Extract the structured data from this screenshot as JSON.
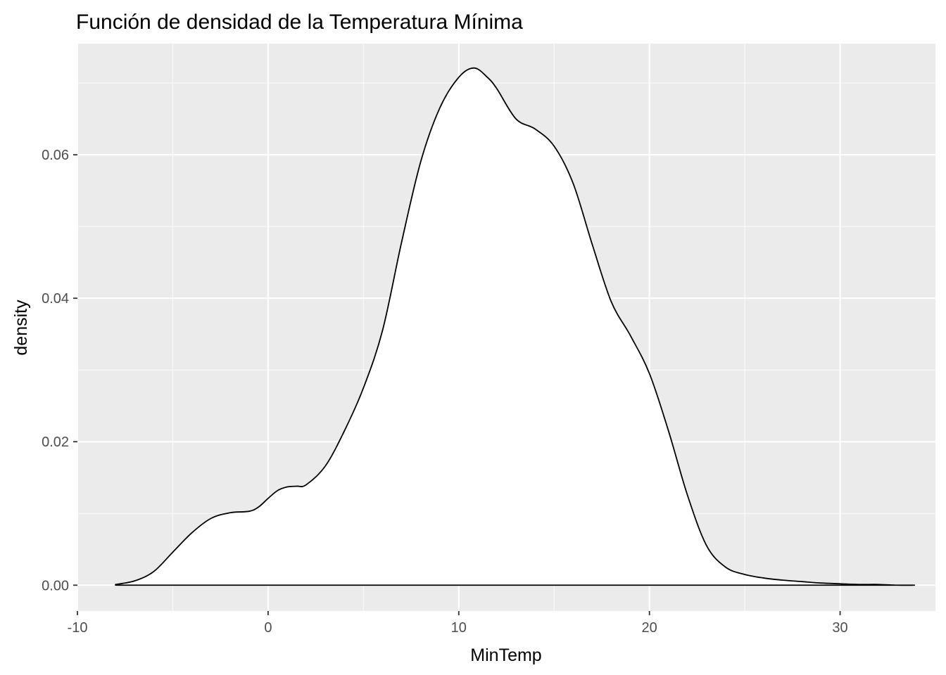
{
  "chart_data": {
    "type": "area",
    "title": "Función de densidad de la Temperatura Mínima",
    "xlabel": "MinTemp",
    "ylabel": "density",
    "xlim": [
      -10.0,
      35.0
    ],
    "ylim": [
      -0.0036,
      0.0755
    ],
    "x_ticks": [
      -10,
      0,
      10,
      20,
      30
    ],
    "x_tick_labels": [
      "-10",
      "0",
      "10",
      "20",
      "30"
    ],
    "y_ticks": [
      0.0,
      0.02,
      0.04,
      0.06
    ],
    "y_tick_labels": [
      "0.00",
      "0.02",
      "0.04",
      "0.06"
    ],
    "grid": true,
    "colors": {
      "panel": "#ebebeb",
      "grid": "#ffffff",
      "fill": "#ffffff",
      "line": "#000000",
      "tick_text": "#4d4d4d"
    },
    "series": [
      {
        "x": [
          -8.0,
          -7.0,
          -6.0,
          -5.0,
          -4.0,
          -3.0,
          -2.0,
          -1.0,
          -0.5,
          0.0,
          0.5,
          1.0,
          1.5,
          2.0,
          3.0,
          4.0,
          5.0,
          6.0,
          7.0,
          8.0,
          9.0,
          10.0,
          10.8,
          11.5,
          12.0,
          13.0,
          14.0,
          15.0,
          16.0,
          17.0,
          18.0,
          19.0,
          20.0,
          21.0,
          22.0,
          23.0,
          24.0,
          25.0,
          26.0,
          27.0,
          28.0,
          29.0,
          30.0,
          31.0,
          32.0,
          33.0,
          33.9
        ],
        "y": [
          0.0001,
          0.0006,
          0.0019,
          0.0046,
          0.0073,
          0.0093,
          0.0101,
          0.0103,
          0.0109,
          0.0121,
          0.0132,
          0.0137,
          0.0138,
          0.014,
          0.0166,
          0.0215,
          0.0275,
          0.0355,
          0.0478,
          0.059,
          0.0665,
          0.0708,
          0.0721,
          0.0708,
          0.0692,
          0.065,
          0.0636,
          0.0612,
          0.056,
          0.0475,
          0.0395,
          0.0348,
          0.0295,
          0.0215,
          0.0125,
          0.0055,
          0.0025,
          0.0015,
          0.001,
          0.0007,
          0.0005,
          0.0003,
          0.0002,
          0.0001,
          0.0001,
          0.0,
          0.0
        ]
      }
    ]
  }
}
